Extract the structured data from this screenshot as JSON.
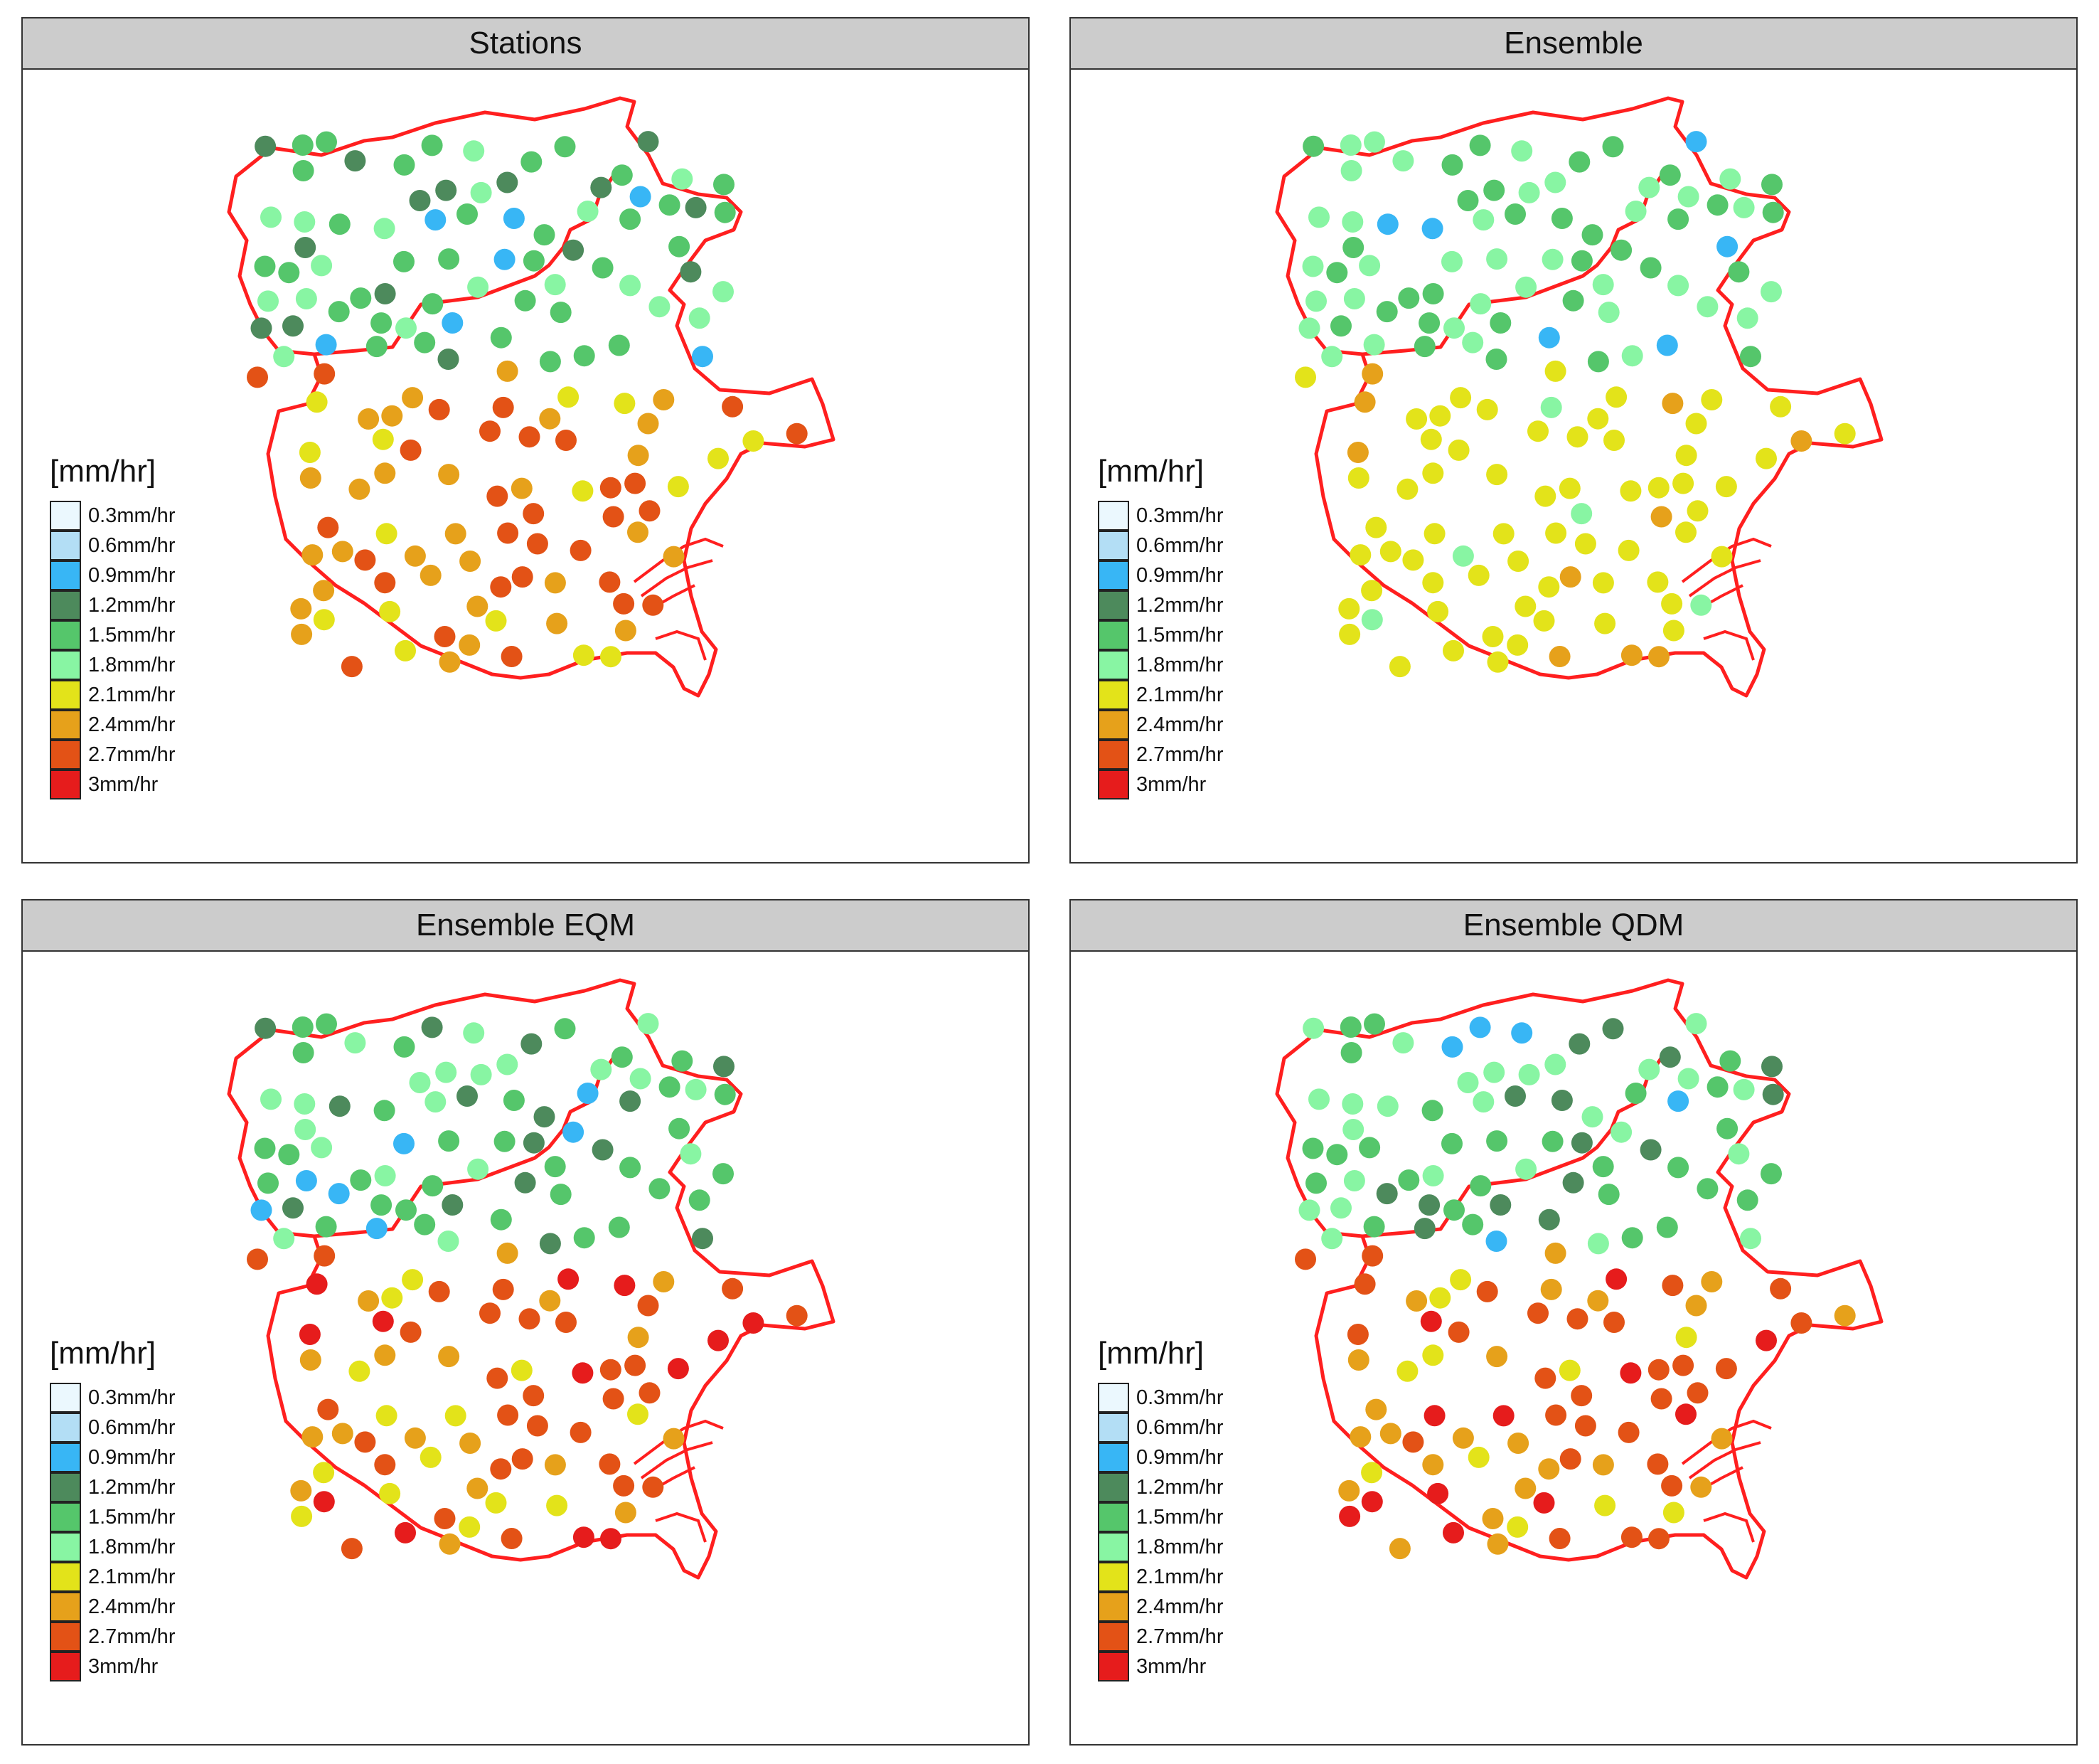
{
  "panels": [
    {
      "title": "Stations"
    },
    {
      "title": "Ensemble"
    },
    {
      "title": "Ensemble EQM"
    },
    {
      "title": "Ensemble QDM"
    }
  ],
  "legend": {
    "title": "[mm/hr]",
    "items": [
      {
        "label": "0.3mm/hr",
        "color": "#ebf8fe"
      },
      {
        "label": "0.6mm/hr",
        "color": "#b3def5"
      },
      {
        "label": "0.9mm/hr",
        "color": "#38b6f5"
      },
      {
        "label": "1.2mm/hr",
        "color": "#4d8a5c"
      },
      {
        "label": "1.5mm/hr",
        "color": "#55c66b"
      },
      {
        "label": "1.8mm/hr",
        "color": "#88f5a3"
      },
      {
        "label": "2.1mm/hr",
        "color": "#e3e31a"
      },
      {
        "label": "2.4mm/hr",
        "color": "#e6a11b"
      },
      {
        "label": "2.7mm/hr",
        "color": "#e35216"
      },
      {
        "label": "3mm/hr",
        "color": "#e61c1c"
      }
    ]
  },
  "colors": {
    "boundary": "#ff1f1f",
    "panel_strip": "#cccccc"
  }
}
